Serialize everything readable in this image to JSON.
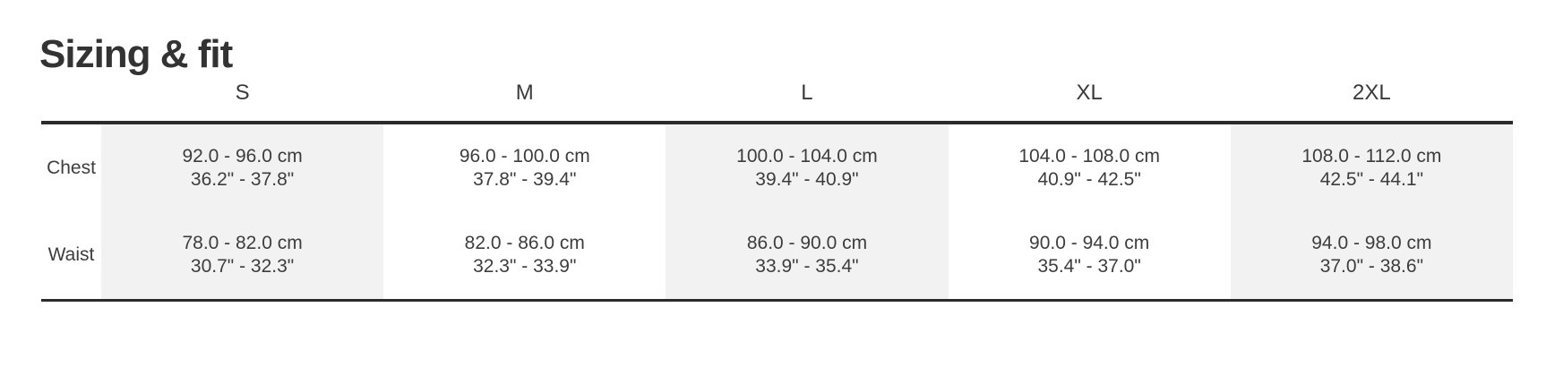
{
  "page": {
    "title": "Sizing & fit"
  },
  "colors": {
    "shade_bg": "#f2f2f2",
    "rule": "#2b2b2b",
    "text": "#3d3d3d",
    "title_text": "#333333"
  },
  "table": {
    "columns": [
      "S",
      "M",
      "L",
      "XL",
      "2XL"
    ],
    "shaded_columns": [
      0,
      2,
      4
    ],
    "rows": [
      {
        "label": "Chest",
        "cells": [
          {
            "cm": "92.0 - 96.0 cm",
            "in": "36.2\" - 37.8\""
          },
          {
            "cm": "96.0 - 100.0 cm",
            "in": "37.8\" - 39.4\""
          },
          {
            "cm": "100.0 - 104.0 cm",
            "in": "39.4\" - 40.9\""
          },
          {
            "cm": "104.0 - 108.0 cm",
            "in": "40.9\" - 42.5\""
          },
          {
            "cm": "108.0 - 112.0 cm",
            "in": "42.5\" - 44.1\""
          }
        ]
      },
      {
        "label": "Waist",
        "cells": [
          {
            "cm": "78.0 - 82.0 cm",
            "in": "30.7\" - 32.3\""
          },
          {
            "cm": "82.0 - 86.0 cm",
            "in": "32.3\" - 33.9\""
          },
          {
            "cm": "86.0 - 90.0 cm",
            "in": "33.9\" - 35.4\""
          },
          {
            "cm": "90.0 - 94.0 cm",
            "in": "35.4\" - 37.0\""
          },
          {
            "cm": "94.0 - 98.0 cm",
            "in": "37.0\" - 38.6\""
          }
        ]
      }
    ]
  }
}
